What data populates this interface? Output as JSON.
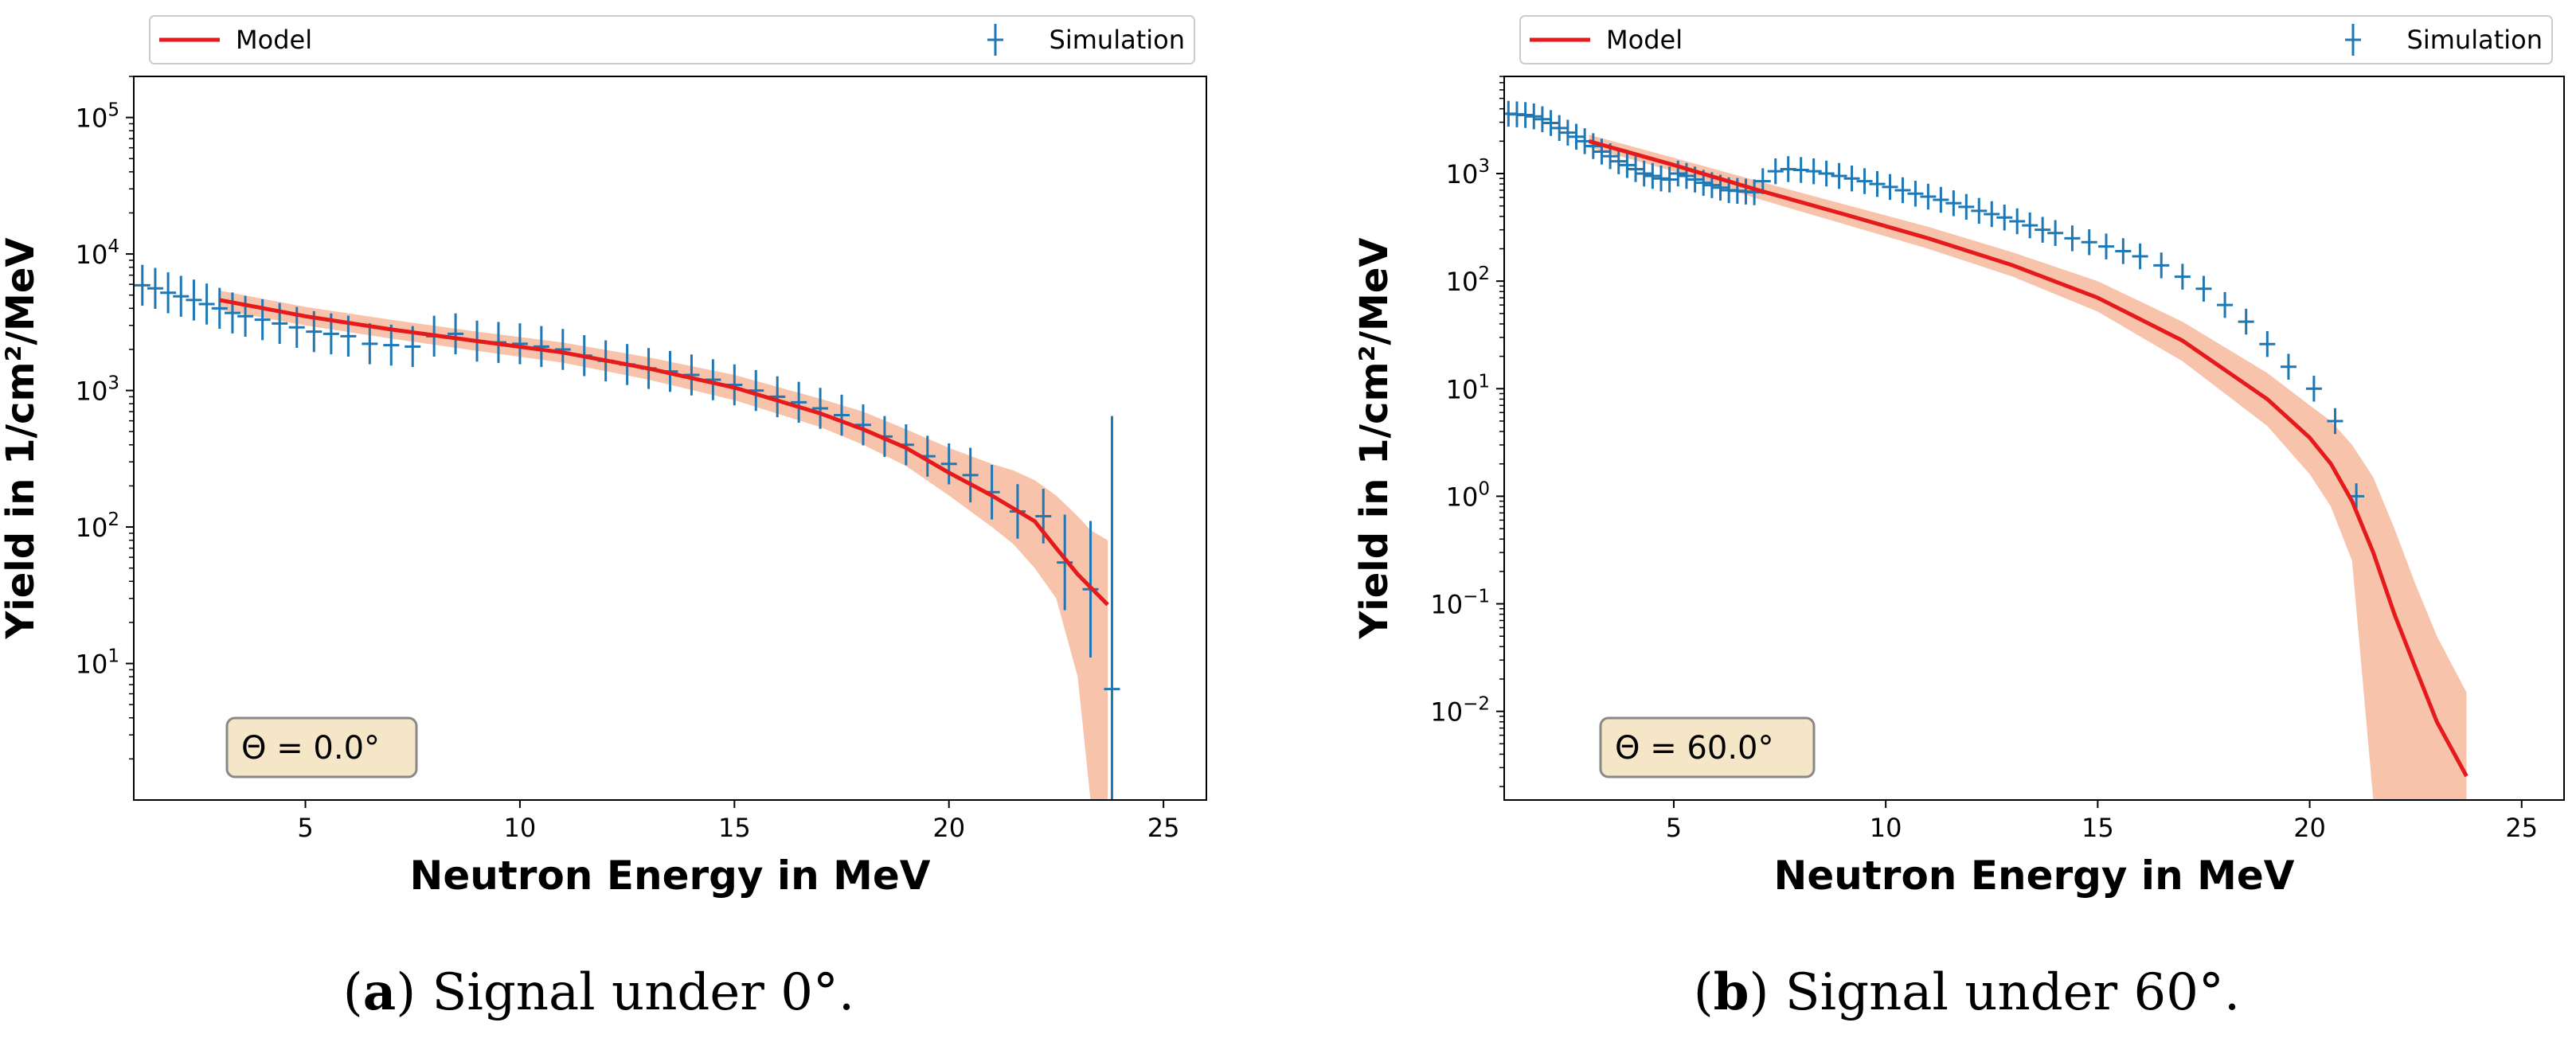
{
  "colors": {
    "model": "#e41a1c",
    "band": "#f7b89c",
    "simulation": "#1f77b4",
    "annotation_bg": "#f5e6c8",
    "annotation_border": "#888888"
  },
  "chart_data": [
    {
      "type": "line",
      "legend": {
        "model_label": "Model",
        "simulation_label": "Simulation",
        "placement": "top-outside"
      },
      "xlabel": "Neutron Energy in MeV",
      "ylabel": "Yield in 1/cm²/MeV",
      "yscale": "log",
      "xlim": [
        1,
        26
      ],
      "ylim": [
        1.0,
        200000
      ],
      "x_ticks": [
        5,
        10,
        15,
        20,
        25
      ],
      "y_ticks": [
        {
          "value": 10,
          "base": "10",
          "exp": "1"
        },
        {
          "value": 100,
          "base": "10",
          "exp": "2"
        },
        {
          "value": 1000,
          "base": "10",
          "exp": "3"
        },
        {
          "value": 10000,
          "base": "10",
          "exp": "4"
        },
        {
          "value": 100000,
          "base": "10",
          "exp": "5"
        }
      ],
      "annotation": "Θ =  0.0°",
      "caption": {
        "label": "a",
        "text": " Signal under 0°."
      },
      "model": {
        "x": [
          3.0,
          5,
          7,
          9,
          11,
          13,
          15,
          17,
          18,
          19,
          20,
          21,
          22,
          22.5,
          23,
          23.7
        ],
        "y": [
          4600,
          3500,
          2800,
          2300,
          1900,
          1450,
          1050,
          680,
          520,
          380,
          250,
          170,
          110,
          70,
          45,
          27
        ]
      },
      "band": {
        "x": [
          3.0,
          5,
          7,
          9,
          11,
          13,
          15,
          17,
          18,
          19,
          20,
          21,
          21.5,
          22,
          22.5,
          23,
          23.3,
          23.7
        ],
        "upper": [
          5400,
          4100,
          3300,
          2700,
          2250,
          1750,
          1300,
          870,
          700,
          520,
          380,
          290,
          260,
          220,
          170,
          120,
          95,
          80
        ],
        "lower": [
          3900,
          3000,
          2400,
          1950,
          1600,
          1200,
          850,
          540,
          400,
          280,
          170,
          100,
          75,
          50,
          30,
          8,
          1.0,
          1.0
        ]
      },
      "simulation": {
        "x": [
          1.2,
          1.5,
          1.8,
          2.1,
          2.4,
          2.7,
          3.0,
          3.3,
          3.6,
          4.0,
          4.4,
          4.8,
          5.2,
          5.6,
          6.0,
          6.5,
          7.0,
          7.5,
          8.0,
          8.5,
          9.0,
          9.5,
          10.0,
          10.5,
          11.0,
          11.5,
          12.0,
          12.5,
          13.0,
          13.5,
          14.0,
          14.5,
          15.0,
          15.5,
          16.0,
          16.5,
          17.0,
          17.5,
          18.0,
          18.5,
          19.0,
          19.5,
          20.0,
          20.5,
          21.0,
          21.6,
          22.2,
          22.7,
          23.3,
          23.8
        ],
        "y": [
          5900,
          5600,
          5200,
          4900,
          4600,
          4300,
          4000,
          3700,
          3500,
          3300,
          3100,
          2900,
          2700,
          2600,
          2500,
          2200,
          2150,
          2100,
          2500,
          2600,
          2300,
          2250,
          2200,
          2100,
          2000,
          1800,
          1650,
          1550,
          1450,
          1380,
          1300,
          1200,
          1100,
          1000,
          900,
          820,
          740,
          660,
          560,
          460,
          400,
          330,
          290,
          240,
          180,
          130,
          120,
          55,
          35,
          6.5
        ],
        "err": [
          0.15,
          0.15,
          0.15,
          0.15,
          0.15,
          0.15,
          0.15,
          0.15,
          0.15,
          0.15,
          0.15,
          0.15,
          0.15,
          0.15,
          0.15,
          0.15,
          0.15,
          0.15,
          0.15,
          0.15,
          0.15,
          0.15,
          0.15,
          0.15,
          0.15,
          0.15,
          0.15,
          0.15,
          0.15,
          0.15,
          0.15,
          0.15,
          0.15,
          0.15,
          0.15,
          0.15,
          0.15,
          0.15,
          0.15,
          0.15,
          0.15,
          0.15,
          0.15,
          0.2,
          0.2,
          0.2,
          0.2,
          0.35,
          0.5,
          2.0
        ]
      }
    },
    {
      "type": "line",
      "legend": {
        "model_label": "Model",
        "simulation_label": "Simulation",
        "placement": "top-outside"
      },
      "xlabel": "Neutron Energy in MeV",
      "ylabel": "Yield in 1/cm²/MeV",
      "yscale": "log",
      "xlim": [
        1,
        26
      ],
      "ylim": [
        0.0015,
        8000
      ],
      "x_ticks": [
        5,
        10,
        15,
        20,
        25
      ],
      "y_ticks": [
        {
          "value": 0.01,
          "base": "10",
          "exp": "−2"
        },
        {
          "value": 0.1,
          "base": "10",
          "exp": "−1"
        },
        {
          "value": 1,
          "base": "10",
          "exp": "0"
        },
        {
          "value": 10,
          "base": "10",
          "exp": "1"
        },
        {
          "value": 100,
          "base": "10",
          "exp": "2"
        },
        {
          "value": 1000,
          "base": "10",
          "exp": "3"
        }
      ],
      "annotation": "Θ =  60.0°",
      "caption": {
        "label": "b",
        "text": " Signal under 60°."
      },
      "model": {
        "x": [
          3.0,
          5,
          7,
          9,
          11,
          13,
          15,
          17,
          19,
          20,
          20.5,
          21,
          21.5,
          22,
          22.5,
          23,
          23.7
        ],
        "y": [
          2000,
          1200,
          700,
          420,
          250,
          140,
          70,
          28,
          8,
          3.5,
          2.0,
          0.9,
          0.3,
          0.08,
          0.025,
          0.008,
          0.0025
        ]
      },
      "band": {
        "x": [
          3.0,
          5,
          7,
          9,
          11,
          13,
          15,
          17,
          19,
          20,
          20.5,
          21,
          21.5,
          22,
          22.5,
          23,
          23.7
        ],
        "upper": [
          2300,
          1400,
          850,
          520,
          320,
          185,
          100,
          42,
          14,
          7,
          5,
          3,
          1.5,
          0.5,
          0.15,
          0.05,
          0.015
        ],
        "lower": [
          1750,
          1050,
          580,
          340,
          200,
          110,
          52,
          18,
          4.5,
          1.6,
          0.8,
          0.25,
          0.0015,
          0.0015,
          0.0015,
          0.0015,
          0.0015
        ]
      },
      "simulation": {
        "x": [
          1.1,
          1.3,
          1.5,
          1.7,
          1.9,
          2.1,
          2.3,
          2.5,
          2.7,
          2.9,
          3.1,
          3.3,
          3.5,
          3.7,
          3.9,
          4.1,
          4.3,
          4.5,
          4.7,
          4.9,
          5.1,
          5.3,
          5.5,
          5.7,
          5.9,
          6.1,
          6.3,
          6.5,
          6.7,
          6.9,
          7.1,
          7.4,
          7.7,
          8.0,
          8.3,
          8.6,
          8.9,
          9.2,
          9.5,
          9.8,
          10.1,
          10.4,
          10.7,
          11.0,
          11.3,
          11.6,
          11.9,
          12.2,
          12.5,
          12.8,
          13.1,
          13.4,
          13.7,
          14.0,
          14.4,
          14.8,
          15.2,
          15.6,
          16.0,
          16.5,
          17.0,
          17.5,
          18.0,
          18.5,
          19.0,
          19.5,
          20.1,
          20.6,
          21.1
        ],
        "y": [
          3600,
          3550,
          3500,
          3400,
          3200,
          2950,
          2650,
          2400,
          2200,
          2000,
          1800,
          1600,
          1450,
          1300,
          1200,
          1100,
          1000,
          950,
          900,
          880,
          1000,
          950,
          880,
          820,
          780,
          740,
          700,
          690,
          680,
          670,
          850,
          1050,
          1100,
          1080,
          1050,
          1000,
          950,
          900,
          850,
          800,
          750,
          700,
          650,
          610,
          570,
          530,
          490,
          450,
          420,
          390,
          360,
          330,
          300,
          280,
          250,
          230,
          210,
          190,
          170,
          140,
          110,
          85,
          60,
          42,
          26,
          16,
          10,
          5,
          1.0
        ]
      }
    }
  ]
}
